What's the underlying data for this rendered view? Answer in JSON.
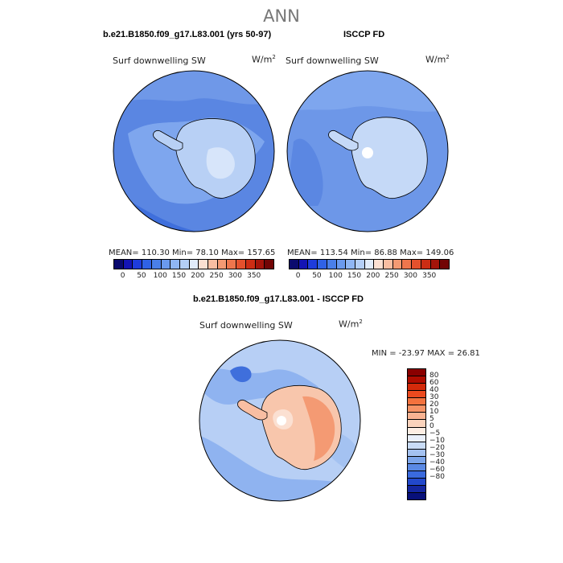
{
  "title": "ANN",
  "panels": [
    {
      "id": "model",
      "title": "b.e21.B1850.f09_g17.L83.001 (yrs 50-97)",
      "variable": "Surf downwelling SW",
      "units_base": "W/m",
      "units_exp": "2",
      "stats": "MEAN= 110.30   Min= 78.10   Max= 157.65"
    },
    {
      "id": "obs",
      "title": "ISCCP FD",
      "variable": "Surf downwelling SW",
      "units_base": "W/m",
      "units_exp": "2",
      "stats": "MEAN= 113.54   Min= 86.88   Max= 149.06"
    }
  ],
  "colorbar": {
    "tick_labels": [
      "0",
      "50",
      "100",
      "150",
      "200",
      "250",
      "300",
      "350"
    ],
    "colors": [
      "#0a0a6e",
      "#1414b4",
      "#1e3cdc",
      "#2f62e6",
      "#4a7fe8",
      "#6a9aee",
      "#8fb6f3",
      "#b4cff6",
      "#e1ecfa",
      "#fbe0d2",
      "#f9bea2",
      "#f49a73",
      "#ee764d",
      "#e4512d",
      "#cc2d14",
      "#a4140a",
      "#720505"
    ]
  },
  "diff_panel": {
    "title": "b.e21.B1850.f09_g17.L83.001 - ISCCP FD",
    "variable": "Surf downwelling SW",
    "units_base": "W/m",
    "units_exp": "2",
    "stats": "MIN = -23.97 MAX =  26.81",
    "colorbar_labels": [
      "80",
      "60",
      "40",
      "30",
      "20",
      "10",
      "5",
      "0",
      "−5",
      "−10",
      "−20",
      "−30",
      "−40",
      "−60",
      "−80"
    ],
    "colorbar_colors": [
      "#8a0000",
      "#b00c00",
      "#d42a0a",
      "#ec4a1e",
      "#f3723e",
      "#f69366",
      "#f9b392",
      "#fbd3bc",
      "#fdeee4",
      "#eaf0fb",
      "#c9dcf6",
      "#a4c2f1",
      "#7ca5ea",
      "#5a89e4",
      "#3a6ade",
      "#2248cc",
      "#1426a0",
      "#08107a"
    ]
  }
}
